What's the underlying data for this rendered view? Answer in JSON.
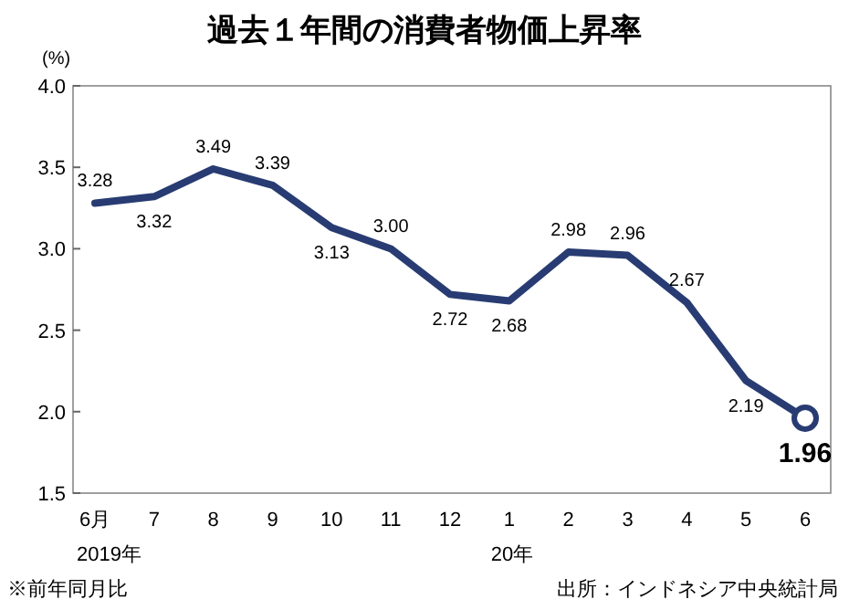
{
  "chart_data": {
    "type": "line",
    "title": "過去１年間の消費者物価上昇率",
    "ylabel": "(%)",
    "categories": [
      "6月",
      "7",
      "8",
      "9",
      "10",
      "11",
      "12",
      "1",
      "2",
      "3",
      "4",
      "5",
      "6"
    ],
    "series": [
      {
        "color": "#283c73",
        "values": [
          3.28,
          3.32,
          3.49,
          3.39,
          3.13,
          3.0,
          2.72,
          2.68,
          2.98,
          2.96,
          2.67,
          2.19,
          1.96
        ]
      }
    ],
    "value_labels": [
      "3.28",
      "3.32",
      "3.49",
      "3.39",
      "3.13",
      "3.00",
      "2.72",
      "2.68",
      "2.98",
      "2.96",
      "2.67",
      "2.19",
      "1.96"
    ],
    "ylim": [
      1.5,
      4.0
    ],
    "yticks": [
      1.5,
      {
        "value": 2,
        "label": "2.0"
      },
      2.5,
      {
        "value": 3,
        "label": "3.0"
      },
      3.5,
      {
        "value": 4,
        "label": "4.0"
      }
    ],
    "grid": false,
    "marker": "none",
    "line_style": "solid",
    "annotations": [
      "2019年",
      "20年",
      "※前年同月比",
      "出所：インドネシア中央統計局"
    ]
  }
}
